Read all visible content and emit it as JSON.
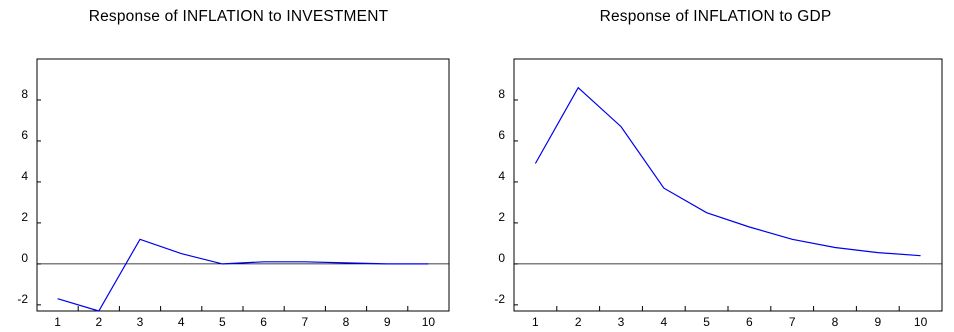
{
  "chart_data": [
    {
      "type": "line",
      "title": "Response of INFLATION to INVESTMENT",
      "categories": [
        "1",
        "2",
        "3",
        "4",
        "5",
        "6",
        "7",
        "8",
        "9",
        "10"
      ],
      "series": [
        {
          "values": [
            -1.7,
            -2.3,
            1.2,
            0.5,
            0.0,
            0.1,
            0.1,
            0.05,
            0.0,
            0.0
          ]
        }
      ],
      "yticks": [
        "-2",
        "0",
        "2",
        "4",
        "6",
        "8"
      ],
      "ylim": [
        -2.3,
        10
      ],
      "zero_line": true,
      "line_color": "#0000ee",
      "grid": false,
      "xlabel": "",
      "ylabel": ""
    },
    {
      "type": "line",
      "title": "Response of INFLATION to GDP",
      "categories": [
        "1",
        "2",
        "3",
        "4",
        "5",
        "6",
        "7",
        "8",
        "9",
        "10"
      ],
      "series": [
        {
          "values": [
            4.9,
            8.6,
            6.7,
            3.7,
            2.5,
            1.8,
            1.2,
            0.8,
            0.55,
            0.4
          ]
        }
      ],
      "yticks": [
        "-2",
        "0",
        "2",
        "4",
        "6",
        "8"
      ],
      "ylim": [
        -2.3,
        10
      ],
      "zero_line": true,
      "line_color": "#0000ee",
      "grid": false,
      "xlabel": "",
      "ylabel": ""
    }
  ]
}
